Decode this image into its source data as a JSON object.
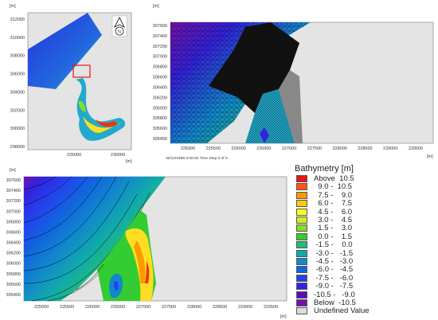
{
  "overview_panel": {
    "unit_y": "[m]",
    "unit_x": "[m]",
    "y_ticks": [
      "312000",
      "310000",
      "308000",
      "306000",
      "304000",
      "302000",
      "300000",
      "298000"
    ],
    "x_ticks": [
      "225000",
      "230000"
    ],
    "north_label": "N"
  },
  "mesh_panel": {
    "unit_y": "[m]",
    "unit_x": "[m]",
    "y_ticks": [
      "307600",
      "307400",
      "307200",
      "307000",
      "306800",
      "306600",
      "306400",
      "306200",
      "306000",
      "305800",
      "305600",
      "305400"
    ],
    "x_ticks": [
      "225000",
      "225500",
      "226000",
      "226500",
      "227000",
      "227500",
      "228000",
      "228500",
      "229000",
      "229500"
    ],
    "timestamp": "30/12/1899 0:00:00  Time Step 0 of 0."
  },
  "bathymetry_panel": {
    "unit_y": "[m]",
    "unit_x": "[m]",
    "y_ticks": [
      "307600",
      "307400",
      "307200",
      "307000",
      "306800",
      "306600",
      "306400",
      "306200",
      "306000",
      "305800",
      "305600",
      "305400"
    ],
    "x_ticks": [
      "225000",
      "225500",
      "226000",
      "226500",
      "227000",
      "227500",
      "228000",
      "228500",
      "229000",
      "229500"
    ]
  },
  "legend": {
    "title": "Bathymetry [m]",
    "entries": [
      {
        "label": "Above  10.5",
        "color": "#ee1111"
      },
      {
        "label": "  9.0 -  10.5",
        "color": "#ff5511"
      },
      {
        "label": "  7.5 -    9.0",
        "color": "#ff9900"
      },
      {
        "label": "  6.0 -    7.5",
        "color": "#ffcc11"
      },
      {
        "label": "  4.5 -    6.0",
        "color": "#ffff22"
      },
      {
        "label": "  3.0 -    4.5",
        "color": "#ccee22"
      },
      {
        "label": "  1.5 -    3.0",
        "color": "#88dd22"
      },
      {
        "label": "  0.0 -    1.5",
        "color": "#33cc33"
      },
      {
        "label": " -1.5 -    0.0",
        "color": "#22bb77"
      },
      {
        "label": " -3.0 -   -1.5",
        "color": "#11aaaa"
      },
      {
        "label": " -4.5 -   -3.0",
        "color": "#1188cc"
      },
      {
        "label": " -6.0 -   -4.5",
        "color": "#1166dd"
      },
      {
        "label": " -7.5 -   -6.0",
        "color": "#2244ee"
      },
      {
        "label": " -9.0 -   -7.5",
        "color": "#3322dd"
      },
      {
        "label": "-10.5 -   -9.0",
        "color": "#5511bb"
      },
      {
        "label": "Below  -10.5",
        "color": "#7711aa"
      },
      {
        "label": "Undefined Value",
        "color": "#dddddd"
      }
    ]
  }
}
